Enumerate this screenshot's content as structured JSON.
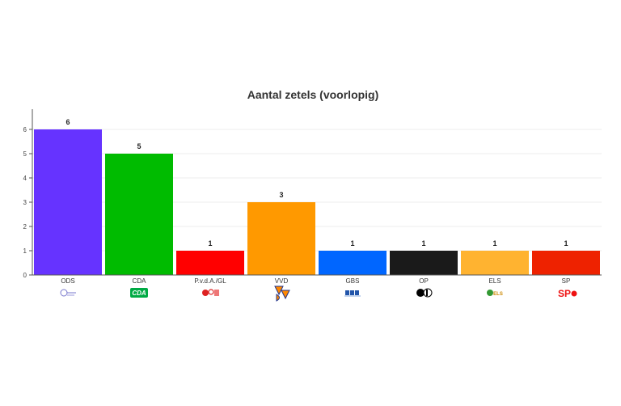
{
  "chart_data": {
    "type": "bar",
    "title": "Aantal zetels (voorlopig)",
    "xlabel": "",
    "ylabel": "",
    "ylim": [
      0,
      7
    ],
    "yticks": [
      0,
      1,
      2,
      3,
      4,
      5,
      6
    ],
    "grid": true,
    "legend": "none",
    "categories": [
      "ODS",
      "CDA",
      "P.v.d.A./GL",
      "VVD",
      "GBS",
      "OP",
      "ELS",
      "SP"
    ],
    "values": [
      6,
      5,
      1,
      3,
      1,
      1,
      1,
      1
    ],
    "colors": [
      "#6633ff",
      "#00bb00",
      "#ff0000",
      "#ff9900",
      "#0066ff",
      "#1a1a1a",
      "#ffb330",
      "#ee2200"
    ],
    "logos": [
      {
        "icon": "ods-logo-icon",
        "text": "ODS",
        "color": "#6666cc"
      },
      {
        "icon": "cda-logo-icon",
        "text": "CDA",
        "color": "#00aa44"
      },
      {
        "icon": "pvda-gl-logo-icon",
        "text": "",
        "color": "#dd2222"
      },
      {
        "icon": "vvd-logo-icon",
        "text": "VVD",
        "color": "#ff8800"
      },
      {
        "icon": "gbs-logo-icon",
        "text": "GBS",
        "color": "#2255aa"
      },
      {
        "icon": "op-logo-icon",
        "text": "",
        "color": "#000000"
      },
      {
        "icon": "els-logo-icon",
        "text": "ELS",
        "color": "#339933"
      },
      {
        "icon": "sp-logo-icon",
        "text": "SP",
        "color": "#ee1111"
      }
    ]
  }
}
